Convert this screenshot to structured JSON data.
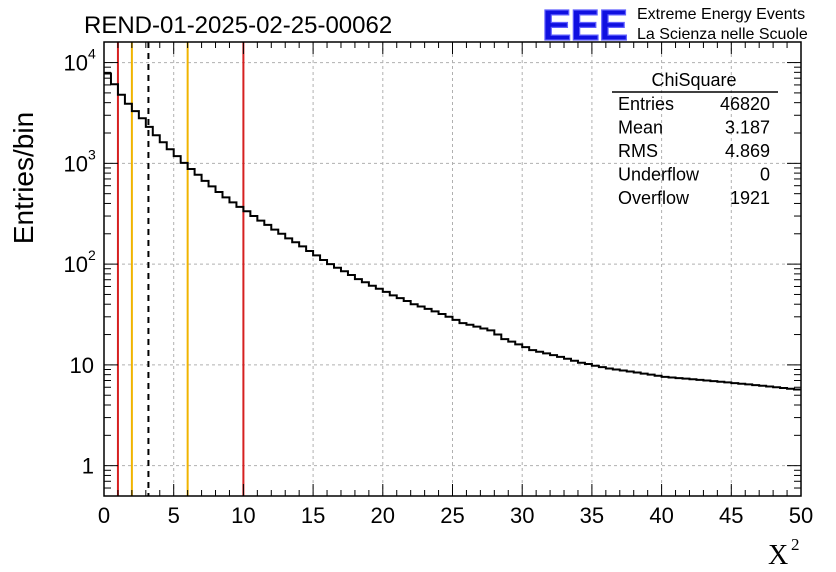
{
  "chart_data": {
    "type": "histogram",
    "title": "REND-01-2025-02-25-00062",
    "xlabel": "X",
    "xlabel_superscript": "2",
    "ylabel": "Entries/bin",
    "xlim": [
      0,
      50
    ],
    "ylim": [
      0.5,
      16000
    ],
    "yscale": "log",
    "grid": true,
    "bin_width": 0.5,
    "x_ticks": [
      0,
      5,
      10,
      15,
      20,
      25,
      30,
      35,
      40,
      45,
      50
    ],
    "x_tick_labels": [
      "0",
      "5",
      "10",
      "15",
      "20",
      "25",
      "30",
      "35",
      "40",
      "45",
      "50"
    ],
    "y_ticks": [
      1,
      10,
      100,
      1000,
      10000
    ],
    "y_tick_labels": [
      {
        "base": "1",
        "exp": ""
      },
      {
        "base": "10",
        "exp": ""
      },
      {
        "base": "10",
        "exp": "2"
      },
      {
        "base": "10",
        "exp": "3"
      },
      {
        "base": "10",
        "exp": "4"
      }
    ],
    "bins": [
      7800,
      6100,
      4800,
      3900,
      3300,
      2800,
      2300,
      1900,
      1620,
      1380,
      1180,
      1010,
      880,
      770,
      670,
      590,
      520,
      460,
      410,
      370,
      335,
      300,
      270,
      245,
      220,
      200,
      180,
      165,
      150,
      135,
      122,
      110,
      100,
      92,
      85,
      78,
      71,
      66,
      61,
      57,
      53,
      49,
      46,
      43,
      40,
      38,
      36,
      34,
      32,
      30,
      28,
      26,
      25,
      24,
      23,
      22,
      20,
      18,
      17,
      16,
      15,
      14,
      13.5,
      13,
      12.5,
      12,
      11.5,
      11,
      10.5,
      10.2,
      9.8,
      9.5,
      9.2,
      9,
      8.8,
      8.6,
      8.4,
      8.2,
      8.0,
      7.8,
      7.6,
      7.5,
      7.4,
      7.3,
      7.2,
      7.1,
      7.0,
      6.9,
      6.8,
      6.7,
      6.6,
      6.5,
      6.4,
      6.3,
      6.2,
      6.1,
      6.0,
      5.9,
      5.8,
      5.7
    ],
    "vertical_lines": [
      {
        "x": 1,
        "color": "#d62020",
        "style": "solid"
      },
      {
        "x": 2,
        "color": "#f0b400",
        "style": "solid"
      },
      {
        "x": 3.187,
        "color": "#000000",
        "style": "dashed"
      },
      {
        "x": 6,
        "color": "#f0b400",
        "style": "solid"
      },
      {
        "x": 10,
        "color": "#d62020",
        "style": "solid"
      }
    ],
    "stats_box": {
      "title": "ChiSquare",
      "rows": [
        {
          "label": "Entries",
          "value": "46820"
        },
        {
          "label": "Mean",
          "value": "3.187"
        },
        {
          "label": "RMS",
          "value": "4.869"
        },
        {
          "label": "Underflow",
          "value": "0"
        },
        {
          "label": "Overflow",
          "value": "1921"
        }
      ]
    }
  },
  "logo": {
    "mark": "EEE",
    "line1": "Extreme Energy Events",
    "line2": "La Scienza nelle Scuole",
    "color": "#1010e0"
  }
}
